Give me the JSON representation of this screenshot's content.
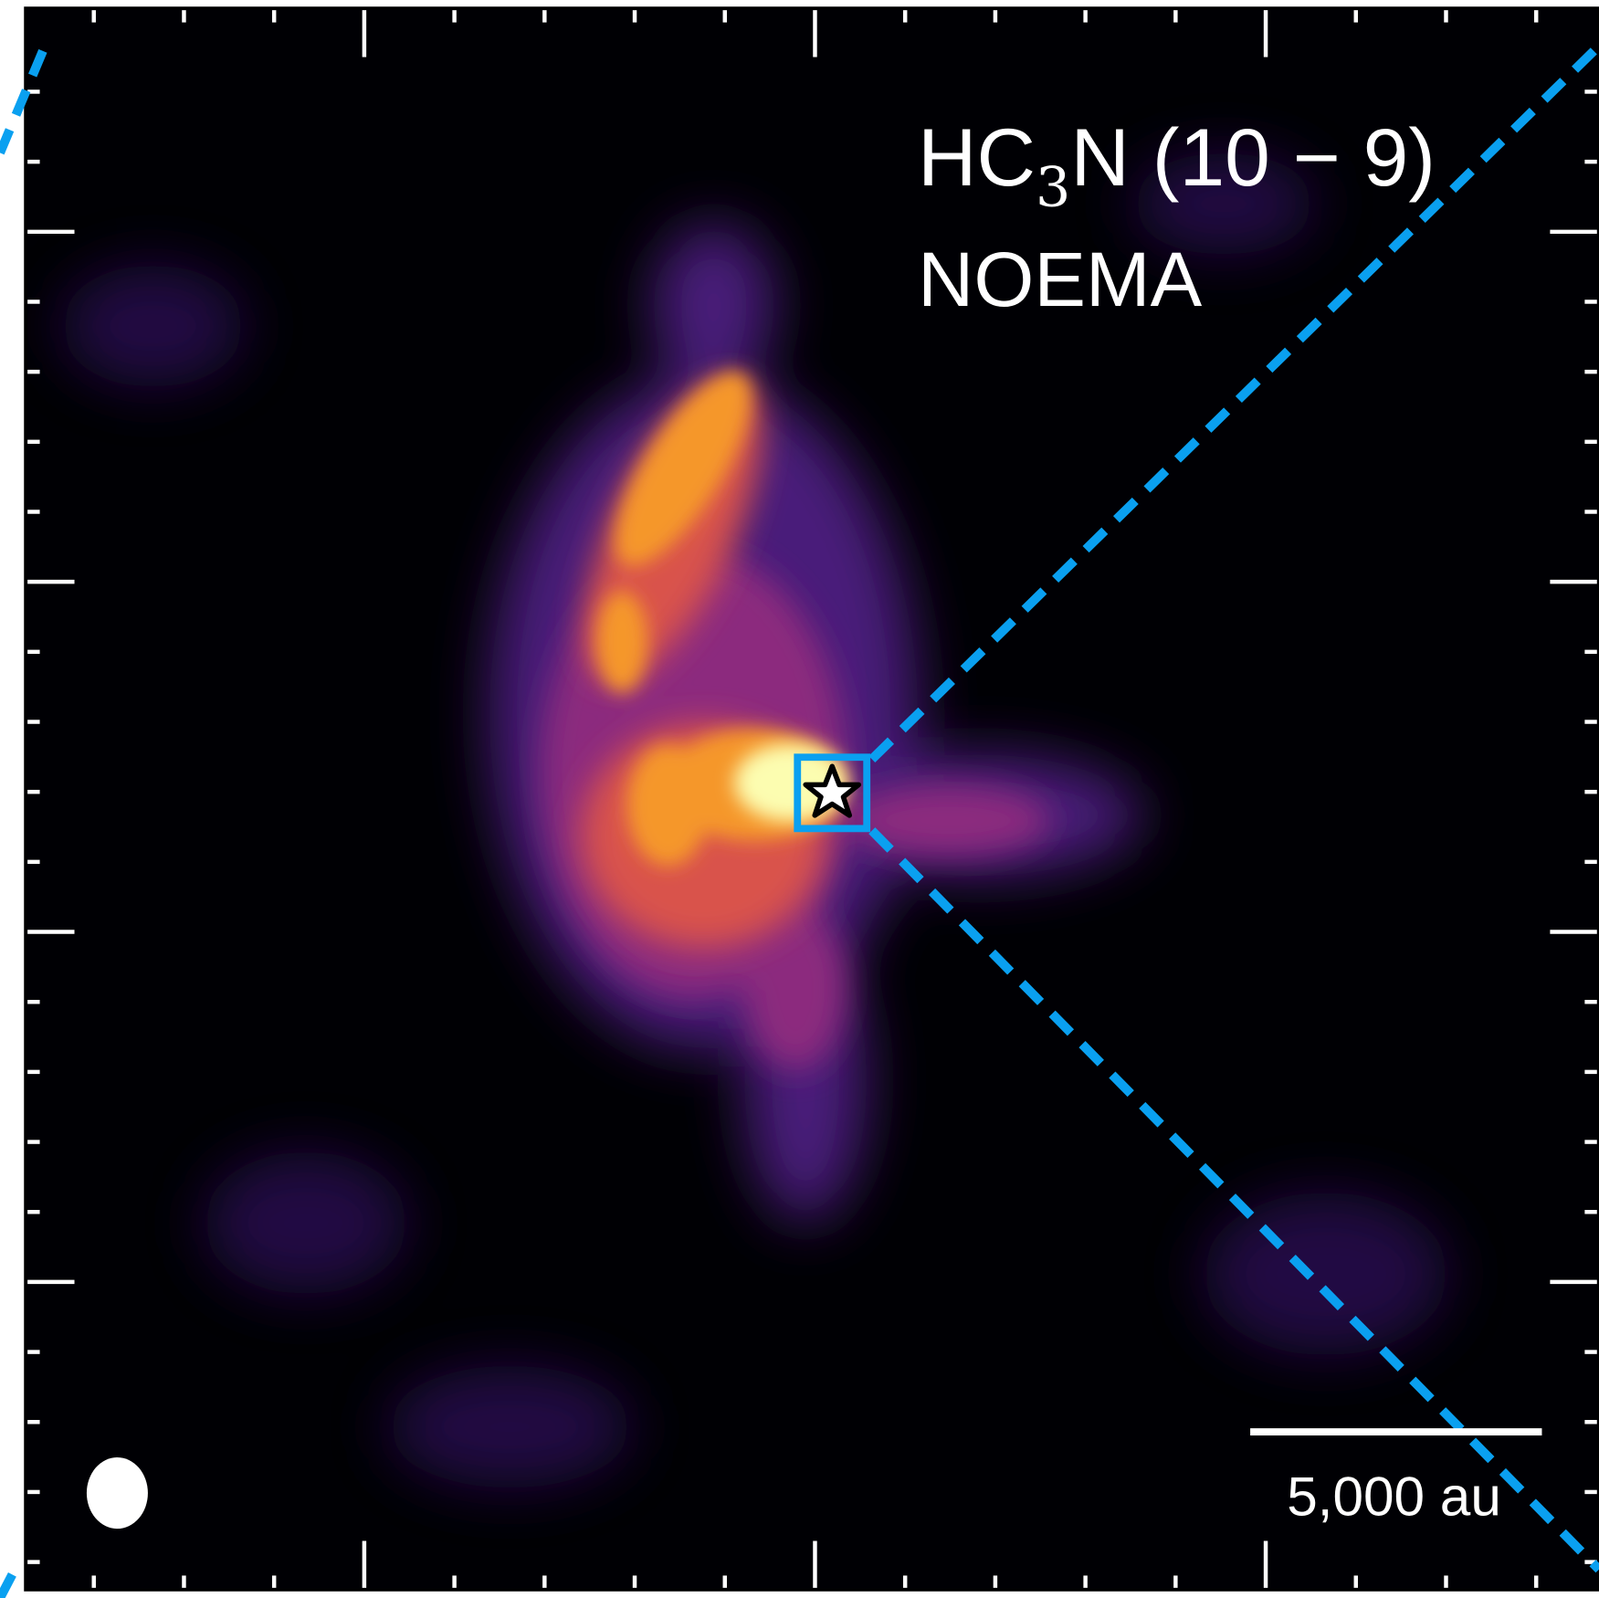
{
  "label": {
    "species": "HC",
    "subscript": "3",
    "transition": "N (10 − 9)",
    "instrument": "NOEMA"
  },
  "scale_bar": {
    "label": "5,000 au"
  }
}
